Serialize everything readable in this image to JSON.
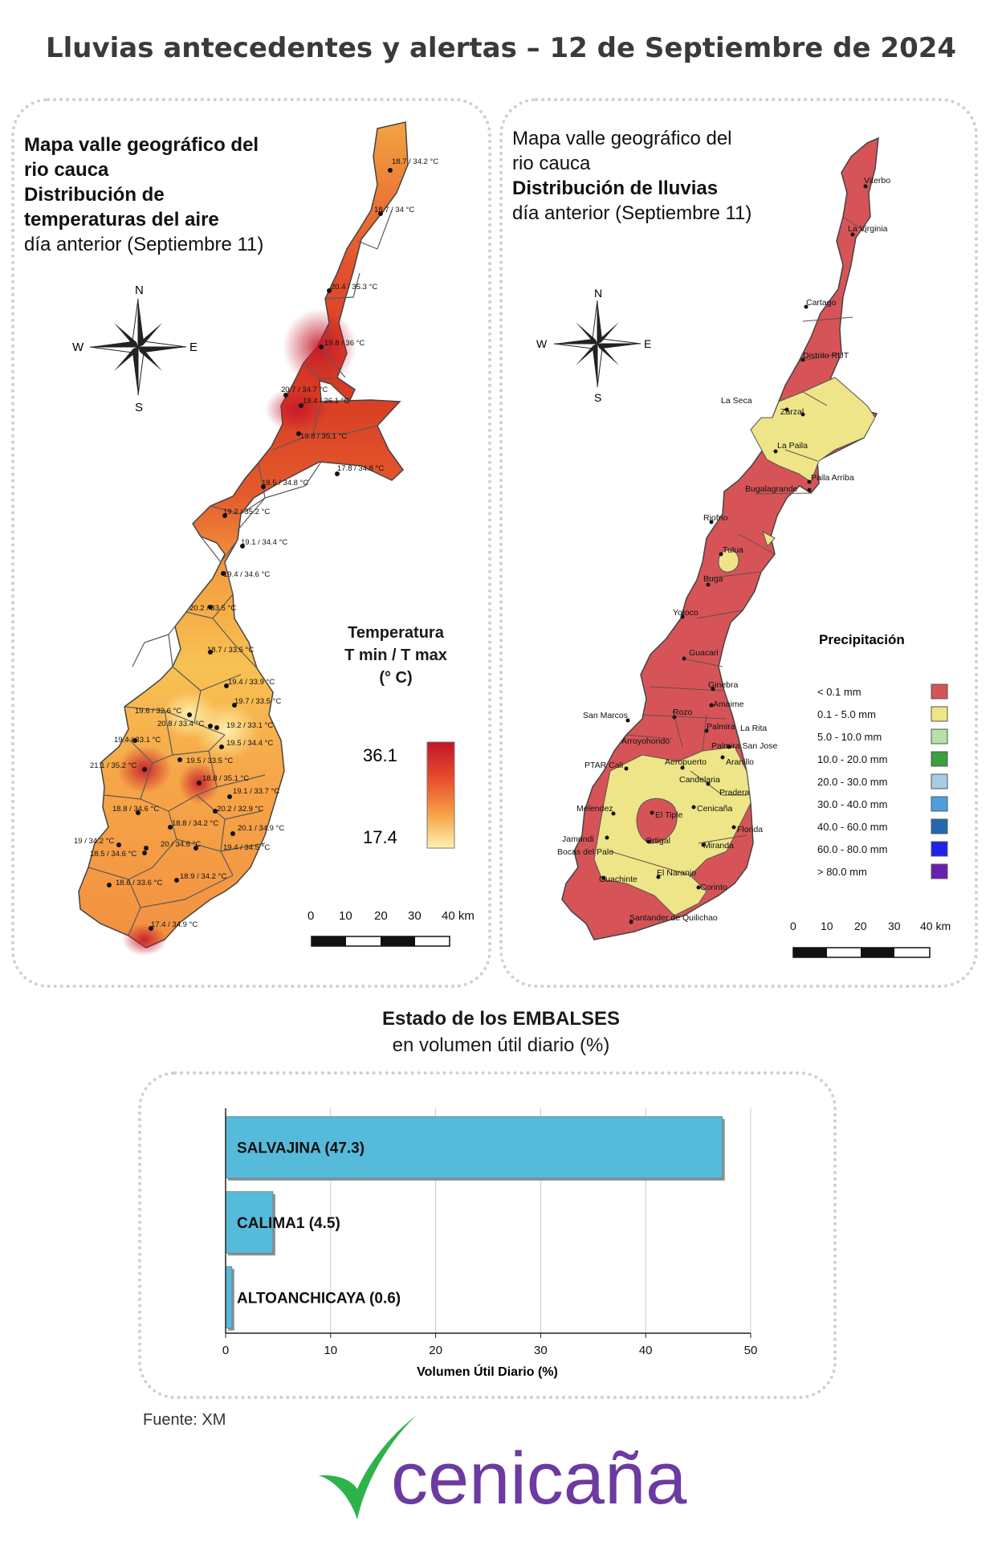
{
  "title": "Lluvias antecedentes y alertas – 12 de Septiembre de 2024",
  "temperature_map": {
    "heading_bold": [
      "Mapa valle geográfico del",
      "rio cauca",
      "Distribución de",
      "temperaturas del aire"
    ],
    "heading_normal": "día anterior (Septiembre 11)",
    "legend_title": [
      "Temperatura",
      "T min / T max",
      "(° C)"
    ],
    "legend_max": "36.1",
    "legend_min": "17.4",
    "compass": {
      "n": "N",
      "s": "S",
      "e": "E",
      "w": "W"
    },
    "scale_labels": [
      "0",
      "10",
      "20",
      "30",
      "40 km"
    ],
    "station_labels": [
      "18.7 / 34.2 °C",
      "18.7 / 34 °C",
      "20.4 / 35.3 °C",
      "19.8 / 36 °C",
      "20.7 / 34.7 °C",
      "19.4 / 36.1 °C",
      "19.8 / 35.1 °C",
      "17.8 / 34.8 °C",
      "18.5 / 34.8 °C",
      "19.2 / 35.2 °C",
      "19.1 / 34.4 °C",
      "19.4 / 34.6 °C",
      "20.2 / 33.5 °C",
      "18.7 / 33.5 °C",
      "19.4 / 33.9 °C",
      "19.7 / 33.5 °C",
      "19.6 / 32.6 °C",
      "20.8 / 33.4 °C",
      "19.2 / 33.1 °C",
      "19.4 / 33.1 °C",
      "19.5 / 34.4 °C",
      "21.1 / 35.2 °C",
      "19.5 / 33.5 °C",
      "18.8 / 35.1 °C",
      "19.1 / 33.7 °C",
      "18.8 / 34.6 °C",
      "20.2 / 32.9 °C",
      "18.8 / 34.2 °C",
      "20.1 / 34.9 °C",
      "19 / 34.2 °C",
      "20 / 34.6 °C",
      "19.4 / 34.5 °C",
      "18.5 / 34.6 °C",
      "18.6 / 33.6 °C",
      "18.9 / 34.2 °C",
      "17.4 / 34.9 °C"
    ]
  },
  "rain_map": {
    "heading_bold_1": [
      "Mapa valle geográfico del",
      "rio cauca"
    ],
    "heading_bold_2": "Distribución de lluvias",
    "heading_normal": "día anterior (Septiembre 11)",
    "compass": {
      "n": "N",
      "s": "S",
      "e": "E",
      "w": "W"
    },
    "legend_title": "Precipitación",
    "legend": [
      {
        "label": "< 0.1 mm",
        "color": "#d65457"
      },
      {
        "label": "0.1 - 5.0 mm",
        "color": "#ede587"
      },
      {
        "label": "5.0 - 10.0 mm",
        "color": "#b8e0a8"
      },
      {
        "label": "10.0 - 20.0 mm",
        "color": "#3ba040"
      },
      {
        "label": "20.0 - 30.0 mm",
        "color": "#a6cbe4"
      },
      {
        "label": "30.0 - 40.0 mm",
        "color": "#4c9fdc"
      },
      {
        "label": "40.0 - 60.0 mm",
        "color": "#2169ad"
      },
      {
        "label": "60.0 - 80.0 mm",
        "color": "#1f22ea"
      },
      {
        "label": "> 80.0 mm",
        "color": "#6a1fb0"
      }
    ],
    "scale_labels": [
      "0",
      "10",
      "20",
      "30",
      "40 km"
    ],
    "places": [
      "Viterbo",
      "La Virginia",
      "Cartago",
      "Distrito RUT",
      "La Seca",
      "Zarzal",
      "La Paila",
      "Paila Arriba",
      "Bugalagrande",
      "Riofrio",
      "Tulua",
      "Buga",
      "Yotoco",
      "Guacari",
      "Ginebra",
      "Amaime",
      "San Marcos",
      "Rozo",
      "Palmira",
      "La Rita",
      "Arroyohondo",
      "Palmira San Jose",
      "Aeropuerto",
      "Aranillo",
      "PTAR Cali",
      "Candelaria",
      "Pradera",
      "Melendez",
      "El Tiple",
      "Cenicaña",
      "Florida",
      "Jamundi",
      "Bocas del Palo",
      "Ortigal",
      "Miranda",
      "Guachinte",
      "El Naranjo",
      "Corinto",
      "Santander de Quilichao"
    ]
  },
  "reservoirs": {
    "title_bold": "Estado de los EMBALSES",
    "title_normal": "en volumen útil diario (%)",
    "bar_color": "#56bbdb"
  },
  "chart_data": {
    "type": "bar",
    "orientation": "horizontal",
    "categories": [
      "SALVAJINA (47.3)",
      "CALIMA1 (4.5)",
      "ALTOANCHICAYA (0.6)"
    ],
    "values": [
      47.3,
      4.5,
      0.6
    ],
    "xlabel": "Volumen Útil Diario (%)",
    "ylabel": "",
    "xlim": [
      0,
      50
    ],
    "x_ticks": [
      "0",
      "10",
      "20",
      "30",
      "40",
      "50"
    ],
    "grid": "vertical gridlines"
  },
  "footer": {
    "source": "Fuente: XM",
    "logo_text": "cenicaña"
  }
}
